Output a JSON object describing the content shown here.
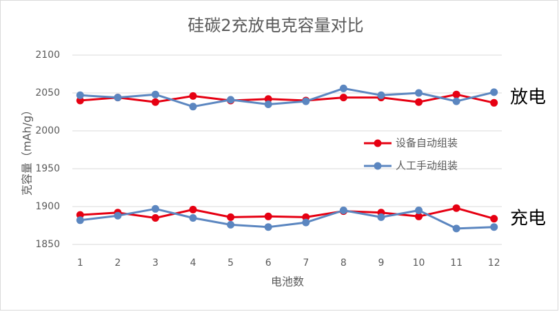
{
  "chart_data": {
    "type": "line",
    "title": "硅碳2充放电克容量对比",
    "x_label": "电池数",
    "y_label": "克容量（mAh/g）",
    "categories": [
      "1",
      "2",
      "3",
      "4",
      "5",
      "6",
      "7",
      "8",
      "9",
      "10",
      "11",
      "12"
    ],
    "ylim": [
      1850,
      2100
    ],
    "yticks": [
      1850,
      1900,
      1950,
      2000,
      2050,
      2100
    ],
    "grid": true,
    "legend": "right",
    "annotations": {
      "discharge": "放电",
      "charge": "充电"
    },
    "series": [
      {
        "name": "设备自动组装",
        "color": "#e60012",
        "discharge": [
          2040,
          2044,
          2038,
          2046,
          2040,
          2042,
          2040,
          2044,
          2044,
          2038,
          2048,
          2037
        ],
        "charge": [
          1889,
          1892,
          1885,
          1896,
          1886,
          1887,
          1886,
          1894,
          1892,
          1887,
          1898,
          1884
        ]
      },
      {
        "name": "人工手动组装",
        "color": "#5b86c0",
        "discharge": [
          2047,
          2044,
          2048,
          2032,
          2041,
          2035,
          2039,
          2056,
          2047,
          2050,
          2039,
          2051
        ],
        "charge": [
          1882,
          1888,
          1897,
          1885,
          1876,
          1873,
          1879,
          1895,
          1886,
          1895,
          1871,
          1873
        ]
      }
    ]
  }
}
